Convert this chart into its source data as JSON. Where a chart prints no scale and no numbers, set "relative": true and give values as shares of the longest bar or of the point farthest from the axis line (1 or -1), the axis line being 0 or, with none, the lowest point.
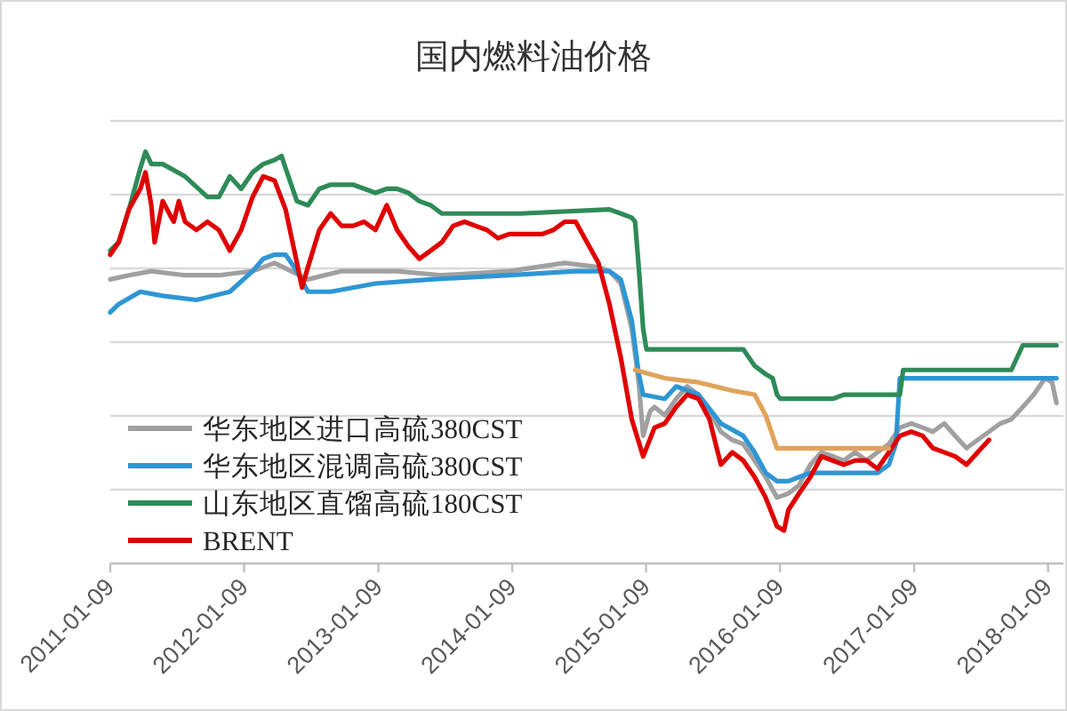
{
  "chart_data": {
    "type": "line",
    "title": "国内燃料油价格",
    "relative": true,
    "grid": "y",
    "legend": "bottom left",
    "line_style": "solid",
    "xlim": [
      "2011-01-09",
      "2018-02-20"
    ],
    "xticks": [
      "2011-01-09",
      "2012-01-09",
      "2013-01-09",
      "2014-01-09",
      "2015-01-09",
      "2016-01-09",
      "2017-01-09",
      "2018-01-09"
    ],
    "series": [
      {
        "name": "华东地区进口高硫380CST",
        "color": "#a0a0a0",
        "x": [
          "2011-01-09",
          "2011-03-01",
          "2011-05-01",
          "2011-08-01",
          "2011-11-01",
          "2012-02-01",
          "2012-04-01",
          "2012-07-01",
          "2012-10-01",
          "2013-03-01",
          "2013-07-01",
          "2014-01-01",
          "2014-06-01",
          "2014-09-01",
          "2014-10-01",
          "2014-11-01",
          "2014-12-01",
          "2014-12-20",
          "2015-01-01",
          "2015-01-20",
          "2015-02-01",
          "2015-03-01",
          "2015-04-01",
          "2015-05-01",
          "2015-06-01",
          "2015-07-01",
          "2015-08-01",
          "2015-09-01",
          "2015-10-01",
          "2015-11-01",
          "2015-12-01",
          "2016-01-01",
          "2016-02-01",
          "2016-03-01",
          "2016-04-01",
          "2016-05-01",
          "2016-06-01",
          "2016-07-01",
          "2016-08-01",
          "2016-09-01",
          "2016-10-01",
          "2016-11-01",
          "2016-12-01",
          "2017-01-01",
          "2017-02-01",
          "2017-03-01",
          "2017-04-01",
          "2017-05-01",
          "2017-06-01",
          "2017-07-01",
          "2017-08-01",
          "2017-09-01",
          "2017-10-01",
          "2017-11-01",
          "2017-12-01",
          "2018-01-01",
          "2018-01-20",
          "2018-02-01"
        ],
        "values": [
          0.69,
          0.7,
          0.71,
          0.7,
          0.7,
          0.71,
          0.73,
          0.69,
          0.71,
          0.71,
          0.7,
          0.71,
          0.73,
          0.72,
          0.71,
          0.68,
          0.57,
          0.44,
          0.31,
          0.37,
          0.38,
          0.36,
          0.4,
          0.43,
          0.41,
          0.37,
          0.32,
          0.3,
          0.29,
          0.25,
          0.21,
          0.16,
          0.17,
          0.19,
          0.24,
          0.27,
          0.26,
          0.25,
          0.27,
          0.25,
          0.27,
          0.29,
          0.33,
          0.34,
          0.33,
          0.32,
          0.34,
          0.31,
          0.28,
          0.3,
          0.32,
          0.34,
          0.35,
          0.38,
          0.41,
          0.45,
          0.44,
          0.39
        ]
      },
      {
        "name": "华东地区混调高硫380CST",
        "color": "#2e96d4",
        "x": [
          "2011-01-09",
          "2011-02-01",
          "2011-04-01",
          "2011-06-01",
          "2011-09-01",
          "2011-12-01",
          "2012-02-01",
          "2012-03-01",
          "2012-04-01",
          "2012-05-01",
          "2012-06-01",
          "2012-07-01",
          "2012-09-01",
          "2013-01-01",
          "2013-06-01",
          "2014-01-01",
          "2014-07-01",
          "2014-10-01",
          "2014-11-01",
          "2014-12-01",
          "2014-12-20",
          "2015-01-01",
          "2015-03-01",
          "2015-04-01",
          "2015-06-01",
          "2015-08-01",
          "2015-10-01",
          "2015-11-01",
          "2015-12-01",
          "2016-01-01",
          "2016-02-01",
          "2016-03-01",
          "2016-04-01",
          "2016-10-01",
          "2016-11-01",
          "2016-11-20",
          "2016-12-01",
          "2018-02-01"
        ],
        "values": [
          0.61,
          0.63,
          0.66,
          0.65,
          0.64,
          0.66,
          0.71,
          0.74,
          0.75,
          0.75,
          0.71,
          0.66,
          0.66,
          0.68,
          0.69,
          0.7,
          0.71,
          0.71,
          0.69,
          0.59,
          0.46,
          0.41,
          0.4,
          0.43,
          0.41,
          0.34,
          0.31,
          0.27,
          0.22,
          0.2,
          0.2,
          0.21,
          0.22,
          0.22,
          0.24,
          0.29,
          0.45,
          0.45
        ]
      },
      {
        "name": "山东地区直馏高硫180CST",
        "color": "#2e8b57",
        "x": [
          "2011-01-09",
          "2011-02-01",
          "2011-03-01",
          "2011-04-01",
          "2011-04-15",
          "2011-05-01",
          "2011-06-01",
          "2011-08-01",
          "2011-10-01",
          "2011-11-01",
          "2011-12-01",
          "2012-01-01",
          "2012-02-01",
          "2012-03-01",
          "2012-04-01",
          "2012-04-20",
          "2012-05-01",
          "2012-06-01",
          "2012-07-01",
          "2012-08-01",
          "2012-09-01",
          "2012-11-01",
          "2013-01-01",
          "2013-02-01",
          "2013-03-01",
          "2013-04-01",
          "2013-05-01",
          "2013-06-01",
          "2013-07-01",
          "2013-10-01",
          "2014-02-01",
          "2014-10-01",
          "2014-11-01",
          "2014-12-01",
          "2014-12-10",
          "2014-12-20",
          "2015-01-01",
          "2015-01-10",
          "2015-10-01",
          "2015-11-01",
          "2015-12-01",
          "2015-12-20",
          "2016-01-01",
          "2016-01-10",
          "2016-06-01",
          "2016-07-01",
          "2016-12-01",
          "2016-12-10",
          "2017-10-01",
          "2017-11-01",
          "2018-02-01"
        ],
        "values": [
          0.76,
          0.78,
          0.86,
          0.96,
          1.0,
          0.97,
          0.97,
          0.94,
          0.89,
          0.89,
          0.94,
          0.91,
          0.95,
          0.97,
          0.98,
          0.99,
          0.96,
          0.88,
          0.87,
          0.91,
          0.92,
          0.92,
          0.9,
          0.91,
          0.91,
          0.9,
          0.88,
          0.87,
          0.85,
          0.85,
          0.85,
          0.86,
          0.85,
          0.84,
          0.83,
          0.72,
          0.57,
          0.52,
          0.52,
          0.48,
          0.46,
          0.45,
          0.41,
          0.4,
          0.4,
          0.41,
          0.41,
          0.47,
          0.47,
          0.53,
          0.53
        ]
      },
      {
        "name": "BRENT",
        "color": "#e00000",
        "x": [
          "2011-01-09",
          "2011-02-01",
          "2011-03-01",
          "2011-04-01",
          "2011-04-15",
          "2011-05-01",
          "2011-05-10",
          "2011-06-01",
          "2011-07-01",
          "2011-07-15",
          "2011-08-01",
          "2011-09-01",
          "2011-10-01",
          "2011-11-01",
          "2011-12-01",
          "2012-01-01",
          "2012-02-01",
          "2012-03-01",
          "2012-04-01",
          "2012-05-01",
          "2012-06-01",
          "2012-06-15",
          "2012-07-01",
          "2012-08-01",
          "2012-09-01",
          "2012-10-01",
          "2012-11-01",
          "2012-12-01",
          "2013-01-01",
          "2013-02-01",
          "2013-03-01",
          "2013-04-01",
          "2013-05-01",
          "2013-06-01",
          "2013-07-01",
          "2013-08-01",
          "2013-09-01",
          "2013-10-01",
          "2013-11-01",
          "2013-12-01",
          "2014-01-01",
          "2014-02-01",
          "2014-03-01",
          "2014-04-01",
          "2014-05-01",
          "2014-06-01",
          "2014-07-01",
          "2014-08-01",
          "2014-09-01",
          "2014-10-01",
          "2014-11-01",
          "2014-12-01",
          "2015-01-01",
          "2015-02-01",
          "2015-03-01",
          "2015-04-01",
          "2015-05-01",
          "2015-06-01",
          "2015-07-01",
          "2015-08-01",
          "2015-09-01",
          "2015-10-01",
          "2015-11-01",
          "2015-12-01",
          "2016-01-01",
          "2016-01-20",
          "2016-02-01",
          "2016-03-01",
          "2016-04-01",
          "2016-05-01",
          "2016-06-01",
          "2016-07-01",
          "2016-08-01",
          "2016-09-01",
          "2016-10-01",
          "2016-11-01",
          "2016-12-01",
          "2017-01-01",
          "2017-02-01",
          "2017-03-01",
          "2017-04-01",
          "2017-05-01",
          "2017-06-01",
          "2017-07-01",
          "2017-08-01"
        ],
        "values": [
          0.75,
          0.78,
          0.86,
          0.91,
          0.95,
          0.87,
          0.78,
          0.88,
          0.83,
          0.88,
          0.83,
          0.81,
          0.83,
          0.81,
          0.76,
          0.81,
          0.89,
          0.94,
          0.93,
          0.86,
          0.73,
          0.67,
          0.72,
          0.81,
          0.85,
          0.82,
          0.82,
          0.83,
          0.81,
          0.87,
          0.81,
          0.77,
          0.74,
          0.76,
          0.78,
          0.82,
          0.83,
          0.82,
          0.81,
          0.79,
          0.8,
          0.8,
          0.8,
          0.8,
          0.81,
          0.83,
          0.83,
          0.78,
          0.73,
          0.63,
          0.5,
          0.35,
          0.26,
          0.33,
          0.34,
          0.38,
          0.41,
          0.4,
          0.35,
          0.24,
          0.27,
          0.25,
          0.21,
          0.16,
          0.09,
          0.08,
          0.13,
          0.17,
          0.21,
          0.26,
          0.25,
          0.24,
          0.25,
          0.25,
          0.23,
          0.27,
          0.31,
          0.32,
          0.31,
          0.28,
          0.27,
          0.26,
          0.24,
          0.27,
          0.3
        ]
      },
      {
        "color": "#e0a35a",
        "x": [
          "2014-12-10",
          "2015-03-01",
          "2015-06-01",
          "2015-09-01",
          "2015-11-01",
          "2015-12-01",
          "2016-01-01",
          "2016-11-01"
        ],
        "values": [
          0.47,
          0.45,
          0.44,
          0.42,
          0.41,
          0.36,
          0.28,
          0.28
        ]
      }
    ]
  }
}
